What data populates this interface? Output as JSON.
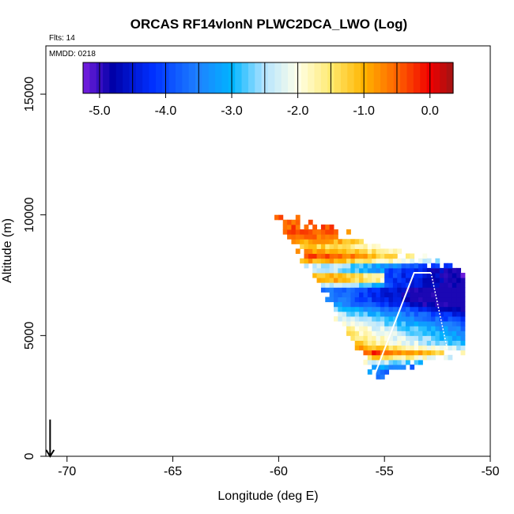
{
  "chart_data": {
    "type": "heatmap",
    "title": "ORCAS RF14vlonN PLWC2DCA_LWO (Log)",
    "info_flights": "Flts: 14",
    "info_date": "MMDD: 0218",
    "xlabel": "Longitude (deg E)",
    "ylabel": "Altitude (m)",
    "xlim": [
      -71,
      -50
    ],
    "ylim": [
      0,
      17000
    ],
    "xticks": [
      -70,
      -65,
      -60,
      -55,
      -50
    ],
    "xtick_labels": [
      "-70",
      "-65",
      "-60",
      "-55",
      "-50"
    ],
    "yticks": [
      0,
      5000,
      10000,
      15000
    ],
    "ytick_labels": [
      "0",
      "5000",
      "10000",
      "15000"
    ],
    "colorbar": {
      "min": -5.25,
      "max": 0.35,
      "ticks": [
        -5.0,
        -4.0,
        -3.0,
        -2.0,
        -1.0,
        0.0
      ],
      "tick_labels": [
        "-5.0",
        "-4.0",
        "-3.0",
        "-2.0",
        "-1.0",
        "0.0"
      ],
      "stops": [
        {
          "v": -5.25,
          "c": "#7a1fe0"
        },
        {
          "v": -4.8,
          "c": "#0000a8"
        },
        {
          "v": -4.2,
          "c": "#0030ff"
        },
        {
          "v": -3.5,
          "c": "#1e82ff"
        },
        {
          "v": -3.0,
          "c": "#00b4ff"
        },
        {
          "v": -2.5,
          "c": "#b4e4ff"
        },
        {
          "v": -2.0,
          "c": "#ffffe8"
        },
        {
          "v": -1.5,
          "c": "#ffea70"
        },
        {
          "v": -1.0,
          "c": "#ffb400"
        },
        {
          "v": -0.5,
          "c": "#ff6400"
        },
        {
          "v": 0.0,
          "c": "#f00000"
        },
        {
          "v": 0.35,
          "c": "#a01414"
        }
      ]
    },
    "field": {
      "lon_start": -60.2,
      "lon_end": -51.2,
      "dlon": 0.2,
      "alt_start": 3200,
      "alt_end": 9900,
      "dalt": 200,
      "envelope": {
        "top_left": [
          -60.0,
          9900
        ],
        "top_right": [
          -51.3,
          7500
        ],
        "bottom_left": [
          -55.4,
          3200
        ],
        "bottom_right": [
          -51.8,
          4200
        ]
      },
      "layers": [
        {
          "alt": 3500,
          "v": -2.8
        },
        {
          "alt": 4200,
          "v": 0.1
        },
        {
          "alt": 4600,
          "v": -0.9
        },
        {
          "alt": 5200,
          "v": -1.5
        },
        {
          "alt": 5900,
          "v": -2.5
        },
        {
          "alt": 6300,
          "v": -3.5
        },
        {
          "alt": 6800,
          "v": -3.6
        },
        {
          "alt": 7300,
          "v": -0.3
        },
        {
          "alt": 7700,
          "v": -3.2
        },
        {
          "alt": 8100,
          "v": -0.2
        },
        {
          "alt": 8600,
          "v": -1.3
        },
        {
          "alt": 9100,
          "v": -0.4
        },
        {
          "alt": 9600,
          "v": -0.5
        }
      ],
      "east_gradient_per_deg": -0.35,
      "east_cap_v": -5.0,
      "purple_edge": {
        "lon": -51.4,
        "alt_min": 7300,
        "alt_max": 7700,
        "v": -5.2
      }
    },
    "flight_track": {
      "solid": [
        [
          -55.5,
          3300
        ],
        [
          -53.6,
          7600
        ],
        [
          -52.8,
          7600
        ]
      ],
      "dotted": [
        [
          -52.8,
          7600
        ],
        [
          -52.0,
          4300
        ]
      ],
      "dotted_left": [
        [
          -59.9,
          9400
        ],
        [
          -59.3,
          7300
        ]
      ]
    },
    "arrow": {
      "lon": -70.8,
      "alt_top": 800,
      "alt_bottom": 0
    }
  }
}
